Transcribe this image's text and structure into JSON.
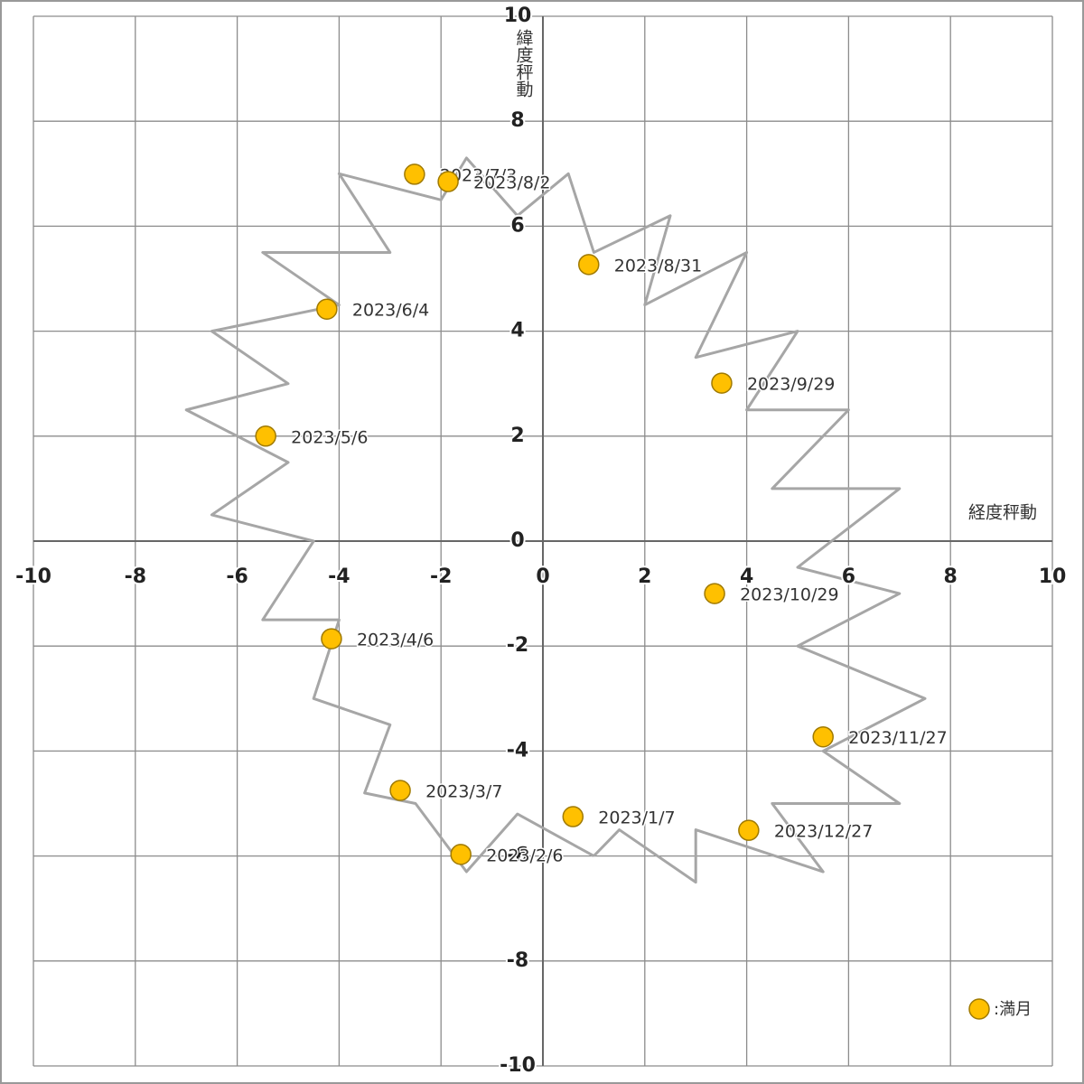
{
  "chart_data": {
    "type": "scatter",
    "x_label": "経度秤動",
    "y_label": "緯度秤動",
    "xlim": [
      -10,
      10
    ],
    "ylim": [
      -10,
      10
    ],
    "xticks": [
      -10,
      -8,
      -6,
      -4,
      -2,
      0,
      2,
      4,
      6,
      8,
      10
    ],
    "yticks": [
      -10,
      -8,
      -6,
      -4,
      -2,
      0,
      2,
      4,
      6,
      8,
      10
    ],
    "grid": true,
    "legend": "lower right",
    "path": {
      "color": "#a6a6a6",
      "x": [
        1,
        -0.5,
        -1.5,
        -2.5,
        -3.5,
        -3,
        -4.5,
        -4,
        -5.5,
        -4.5,
        -6.5,
        -5,
        -7,
        -5,
        -6.5,
        -4,
        -5.5,
        -3,
        -4,
        -2,
        -1.5,
        -0.5,
        0.5,
        1,
        2.5,
        2,
        4,
        3,
        5,
        4,
        6,
        4.5,
        7,
        5,
        7,
        5,
        7.5,
        5.5,
        7,
        4.5,
        5.5,
        3,
        3,
        1.5,
        1
      ],
      "y": [
        -6,
        -5.2,
        -6.3,
        -5,
        -4.8,
        -3.5,
        -3,
        -1.5,
        -1.5,
        0,
        0.5,
        1.5,
        2.5,
        3,
        4,
        4.5,
        5.5,
        5.5,
        7,
        6.5,
        7.3,
        6.2,
        7,
        5.5,
        6.2,
        4.5,
        5.5,
        3.5,
        4,
        2.5,
        2.5,
        1,
        1,
        -0.5,
        -1,
        -2,
        -3,
        -4,
        -5,
        -5,
        -6.3,
        -5.5,
        -6.5,
        -5.5,
        -6
      ]
    },
    "series": [
      {
        "name": ":満月",
        "color": "#ffc000",
        "x": [
          0.59,
          -1.61,
          -2.8,
          -4.15,
          -5.44,
          -4.24,
          -2.52,
          -1.86,
          0.9,
          3.51,
          3.37,
          5.5,
          4.04
        ],
        "y": [
          -5.25,
          -5.97,
          -4.75,
          -1.86,
          2.0,
          4.42,
          6.99,
          6.85,
          5.27,
          3.01,
          -1.0,
          -3.73,
          -5.51
        ],
        "point_labels": [
          "2023/1/7",
          "2023/2/6",
          "2023/3/7",
          "2023/4/6",
          "2023/5/6",
          "2023/6/4",
          "2023/7/3",
          "2023/8/2",
          "2023/8/31",
          "2023/9/29",
          "2023/10/29",
          "2023/11/27",
          "2023/12/27"
        ]
      }
    ]
  }
}
